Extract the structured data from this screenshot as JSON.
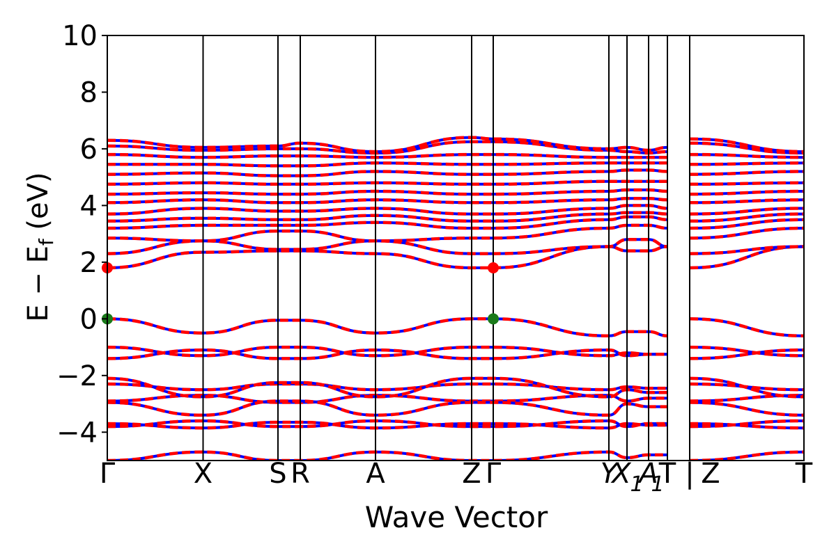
{
  "chart_data": {
    "type": "line",
    "title": "",
    "xlabel": "Wave Vector",
    "ylabel_main": "E − E",
    "ylabel_sub": "f",
    "ylabel_unit": " (eV)",
    "ylim": [
      -5,
      10
    ],
    "yticks": [
      {
        "value": 10,
        "label": "10"
      },
      {
        "value": 8,
        "label": "8"
      },
      {
        "value": 6,
        "label": "6"
      },
      {
        "value": 4,
        "label": "4"
      },
      {
        "value": 2,
        "label": "2"
      },
      {
        "value": 0,
        "label": "0"
      },
      {
        "value": -2,
        "label": "−2"
      },
      {
        "value": -4,
        "label": "−4"
      }
    ],
    "kpath_labels": [
      "Γ",
      "X",
      "S",
      "R",
      "A",
      "Z",
      "Γ",
      "Y",
      "X",
      "1",
      "A",
      "1",
      "T",
      "|",
      "Z",
      "T"
    ],
    "kpoints": [
      {
        "x": 0.0,
        "label": "Γ"
      },
      {
        "x": 0.1375,
        "label": "X"
      },
      {
        "x": 0.245,
        "label": "S"
      },
      {
        "x": 0.277,
        "label": "R"
      },
      {
        "x": 0.385,
        "label": "A"
      },
      {
        "x": 0.523,
        "label": "Z"
      },
      {
        "x": 0.554,
        "label": "Γ"
      },
      {
        "x": 0.72,
        "label": "Y"
      },
      {
        "x": 0.746,
        "label": "X"
      },
      {
        "x": 0.777,
        "label": "A"
      },
      {
        "x": 0.804,
        "label": "T"
      },
      {
        "x": 0.836,
        "label": "Z"
      },
      {
        "x": 1.0,
        "label": "T"
      }
    ],
    "special_points": [
      {
        "x": 0.0,
        "y": 1.8,
        "color": "#ff0000"
      },
      {
        "x": 0.554,
        "y": 1.8,
        "color": "#ff0000"
      },
      {
        "x": 0.0,
        "y": 0.0,
        "color": "#1a7a1a"
      },
      {
        "x": 0.554,
        "y": 0.0,
        "color": "#1a7a1a"
      }
    ],
    "series": [
      {
        "style": "solid",
        "color": "#0000ff"
      },
      {
        "style": "dashed",
        "color": "#ff0000"
      }
    ],
    "bands": [
      [
        [
          0,
          -5.0
        ],
        [
          0.137,
          -4.7
        ],
        [
          0.245,
          -5.0
        ],
        [
          0.277,
          -5.0
        ],
        [
          0.385,
          -4.7
        ],
        [
          0.523,
          -5.0
        ],
        [
          0.554,
          -5.0
        ],
        [
          0.72,
          -4.7
        ],
        [
          0.746,
          -4.9
        ],
        [
          0.777,
          -4.8
        ],
        [
          0.804,
          -4.8
        ],
        [
          0.836,
          -5.0
        ],
        [
          1.0,
          -4.7
        ]
      ],
      [
        [
          0,
          -3.8
        ],
        [
          0.137,
          -3.6
        ],
        [
          0.245,
          -3.8
        ],
        [
          0.277,
          -3.8
        ],
        [
          0.385,
          -3.6
        ],
        [
          0.523,
          -3.8
        ],
        [
          0.554,
          -3.8
        ],
        [
          0.72,
          -3.6
        ],
        [
          0.746,
          -3.8
        ],
        [
          0.777,
          -3.7
        ],
        [
          0.804,
          -3.7
        ],
        [
          0.836,
          -3.8
        ],
        [
          1.0,
          -3.6
        ]
      ],
      [
        [
          0,
          -3.7
        ],
        [
          0.137,
          -3.85
        ],
        [
          0.245,
          -3.65
        ],
        [
          0.277,
          -3.65
        ],
        [
          0.385,
          -3.85
        ],
        [
          0.523,
          -3.7
        ],
        [
          0.554,
          -3.7
        ],
        [
          0.72,
          -3.85
        ],
        [
          0.746,
          -3.7
        ],
        [
          0.777,
          -3.75
        ],
        [
          0.804,
          -3.75
        ],
        [
          0.836,
          -3.7
        ],
        [
          1.0,
          -3.85
        ]
      ],
      [
        [
          0,
          -2.9
        ],
        [
          0.137,
          -2.7
        ],
        [
          0.245,
          -2.95
        ],
        [
          0.277,
          -2.95
        ],
        [
          0.385,
          -2.7
        ],
        [
          0.523,
          -2.9
        ],
        [
          0.554,
          -2.9
        ],
        [
          0.72,
          -2.7
        ],
        [
          0.746,
          -2.9
        ],
        [
          0.777,
          -2.8
        ],
        [
          0.804,
          -2.8
        ],
        [
          0.836,
          -2.9
        ],
        [
          1.0,
          -2.7
        ]
      ],
      [
        [
          0,
          -2.95
        ],
        [
          0.137,
          -3.4
        ],
        [
          0.245,
          -2.9
        ],
        [
          0.277,
          -2.9
        ],
        [
          0.385,
          -3.4
        ],
        [
          0.523,
          -2.95
        ],
        [
          0.554,
          -2.95
        ],
        [
          0.72,
          -3.4
        ],
        [
          0.746,
          -3.0
        ],
        [
          0.777,
          -3.1
        ],
        [
          0.804,
          -3.1
        ],
        [
          0.836,
          -2.95
        ],
        [
          1.0,
          -3.4
        ]
      ],
      [
        [
          0,
          -2.3
        ],
        [
          0.137,
          -2.5
        ],
        [
          0.245,
          -2.3
        ],
        [
          0.277,
          -2.3
        ],
        [
          0.385,
          -2.5
        ],
        [
          0.523,
          -2.3
        ],
        [
          0.554,
          -2.3
        ],
        [
          0.72,
          -2.5
        ],
        [
          0.746,
          -2.4
        ],
        [
          0.777,
          -2.45
        ],
        [
          0.804,
          -2.45
        ],
        [
          0.836,
          -2.3
        ],
        [
          1.0,
          -2.5
        ]
      ],
      [
        [
          0,
          -2.1
        ],
        [
          0.137,
          -2.75
        ],
        [
          0.245,
          -2.25
        ],
        [
          0.277,
          -2.25
        ],
        [
          0.385,
          -2.75
        ],
        [
          0.523,
          -2.1
        ],
        [
          0.554,
          -2.1
        ],
        [
          0.72,
          -2.75
        ],
        [
          0.746,
          -2.5
        ],
        [
          0.777,
          -2.6
        ],
        [
          0.804,
          -2.6
        ],
        [
          0.836,
          -2.1
        ],
        [
          1.0,
          -2.75
        ]
      ],
      [
        [
          0,
          -1.4
        ],
        [
          0.137,
          -1.1
        ],
        [
          0.245,
          -1.4
        ],
        [
          0.277,
          -1.4
        ],
        [
          0.385,
          -1.1
        ],
        [
          0.523,
          -1.4
        ],
        [
          0.554,
          -1.4
        ],
        [
          0.72,
          -1.1
        ],
        [
          0.746,
          -1.3
        ],
        [
          0.777,
          -1.25
        ],
        [
          0.804,
          -1.25
        ],
        [
          0.836,
          -1.4
        ],
        [
          1.0,
          -1.1
        ]
      ],
      [
        [
          0,
          -1.0
        ],
        [
          0.137,
          -1.3
        ],
        [
          0.245,
          -1.0
        ],
        [
          0.277,
          -1.0
        ],
        [
          0.385,
          -1.3
        ],
        [
          0.523,
          -1.0
        ],
        [
          0.554,
          -1.0
        ],
        [
          0.72,
          -1.3
        ],
        [
          0.746,
          -1.2
        ],
        [
          0.777,
          -1.25
        ],
        [
          0.804,
          -1.25
        ],
        [
          0.836,
          -1.0
        ],
        [
          1.0,
          -1.3
        ]
      ],
      [
        [
          0,
          0.0
        ],
        [
          0.137,
          -0.5
        ],
        [
          0.245,
          -0.05
        ],
        [
          0.277,
          -0.05
        ],
        [
          0.385,
          -0.5
        ],
        [
          0.523,
          0.0
        ],
        [
          0.554,
          0.0
        ],
        [
          0.72,
          -0.6
        ],
        [
          0.746,
          -0.45
        ],
        [
          0.777,
          -0.45
        ],
        [
          0.804,
          -0.6
        ],
        [
          0.836,
          0.0
        ],
        [
          1.0,
          -0.6
        ]
      ],
      [
        [
          0,
          1.8
        ],
        [
          0.137,
          2.35
        ],
        [
          0.245,
          2.4
        ],
        [
          0.277,
          2.4
        ],
        [
          0.385,
          2.3
        ],
        [
          0.523,
          1.8
        ],
        [
          0.554,
          1.8
        ],
        [
          0.72,
          2.55
        ],
        [
          0.746,
          2.4
        ],
        [
          0.777,
          2.4
        ],
        [
          0.804,
          2.55
        ],
        [
          0.836,
          1.8
        ],
        [
          1.0,
          2.55
        ]
      ],
      [
        [
          0,
          2.3
        ],
        [
          0.137,
          2.75
        ],
        [
          0.245,
          2.45
        ],
        [
          0.277,
          2.45
        ],
        [
          0.385,
          2.75
        ],
        [
          0.523,
          2.3
        ],
        [
          0.554,
          2.3
        ],
        [
          0.72,
          2.55
        ],
        [
          0.746,
          2.8
        ],
        [
          0.777,
          2.8
        ],
        [
          0.804,
          2.55
        ],
        [
          0.836,
          2.3
        ],
        [
          1.0,
          2.55
        ]
      ],
      [
        [
          0,
          2.85
        ],
        [
          0.137,
          2.75
        ],
        [
          0.245,
          3.1
        ],
        [
          0.277,
          3.1
        ],
        [
          0.385,
          2.75
        ],
        [
          0.523,
          2.85
        ],
        [
          0.554,
          2.85
        ],
        [
          0.72,
          3.2
        ],
        [
          0.746,
          3.3
        ],
        [
          0.777,
          3.3
        ],
        [
          0.804,
          3.2
        ],
        [
          0.836,
          2.85
        ],
        [
          1.0,
          3.2
        ]
      ],
      [
        [
          0,
          3.2
        ],
        [
          0.137,
          3.3
        ],
        [
          0.245,
          3.3
        ],
        [
          0.277,
          3.3
        ],
        [
          0.385,
          3.4
        ],
        [
          0.523,
          3.2
        ],
        [
          0.554,
          3.2
        ],
        [
          0.72,
          3.5
        ],
        [
          0.746,
          3.6
        ],
        [
          0.777,
          3.6
        ],
        [
          0.804,
          3.5
        ],
        [
          0.836,
          3.2
        ],
        [
          1.0,
          3.5
        ]
      ],
      [
        [
          0,
          3.45
        ],
        [
          0.137,
          3.55
        ],
        [
          0.245,
          3.5
        ],
        [
          0.277,
          3.5
        ],
        [
          0.385,
          3.65
        ],
        [
          0.523,
          3.45
        ],
        [
          0.554,
          3.45
        ],
        [
          0.72,
          3.7
        ],
        [
          0.746,
          3.75
        ],
        [
          0.777,
          3.75
        ],
        [
          0.804,
          3.7
        ],
        [
          0.836,
          3.45
        ],
        [
          1.0,
          3.7
        ]
      ],
      [
        [
          0,
          3.7
        ],
        [
          0.137,
          3.9
        ],
        [
          0.245,
          3.8
        ],
        [
          0.277,
          3.8
        ],
        [
          0.385,
          3.9
        ],
        [
          0.523,
          3.7
        ],
        [
          0.554,
          3.7
        ],
        [
          0.72,
          3.9
        ],
        [
          0.746,
          4.0
        ],
        [
          0.777,
          4.0
        ],
        [
          0.804,
          3.9
        ],
        [
          0.836,
          3.7
        ],
        [
          1.0,
          3.9
        ]
      ],
      [
        [
          0,
          4.1
        ],
        [
          0.137,
          4.2
        ],
        [
          0.245,
          4.1
        ],
        [
          0.277,
          4.1
        ],
        [
          0.385,
          4.2
        ],
        [
          0.523,
          4.1
        ],
        [
          0.554,
          4.1
        ],
        [
          0.72,
          4.2
        ],
        [
          0.746,
          4.25
        ],
        [
          0.777,
          4.25
        ],
        [
          0.804,
          4.2
        ],
        [
          0.836,
          4.1
        ],
        [
          1.0,
          4.2
        ]
      ],
      [
        [
          0,
          4.4
        ],
        [
          0.137,
          4.45
        ],
        [
          0.245,
          4.4
        ],
        [
          0.277,
          4.4
        ],
        [
          0.385,
          4.5
        ],
        [
          0.523,
          4.4
        ],
        [
          0.554,
          4.4
        ],
        [
          0.72,
          4.5
        ],
        [
          0.746,
          4.55
        ],
        [
          0.777,
          4.55
        ],
        [
          0.804,
          4.5
        ],
        [
          0.836,
          4.4
        ],
        [
          1.0,
          4.5
        ]
      ],
      [
        [
          0,
          4.75
        ],
        [
          0.137,
          4.8
        ],
        [
          0.245,
          4.75
        ],
        [
          0.277,
          4.75
        ],
        [
          0.385,
          4.8
        ],
        [
          0.523,
          4.75
        ],
        [
          0.554,
          4.75
        ],
        [
          0.72,
          4.85
        ],
        [
          0.746,
          4.85
        ],
        [
          0.777,
          4.85
        ],
        [
          0.804,
          4.85
        ],
        [
          0.836,
          4.75
        ],
        [
          1.0,
          4.8
        ]
      ],
      [
        [
          0,
          5.1
        ],
        [
          0.137,
          5.15
        ],
        [
          0.245,
          5.05
        ],
        [
          0.277,
          5.05
        ],
        [
          0.385,
          5.2
        ],
        [
          0.523,
          5.1
        ],
        [
          0.554,
          5.1
        ],
        [
          0.72,
          5.2
        ],
        [
          0.746,
          5.25
        ],
        [
          0.777,
          5.25
        ],
        [
          0.804,
          5.2
        ],
        [
          0.836,
          5.1
        ],
        [
          1.0,
          5.2
        ]
      ],
      [
        [
          0,
          5.45
        ],
        [
          0.137,
          5.45
        ],
        [
          0.245,
          5.4
        ],
        [
          0.277,
          5.4
        ],
        [
          0.385,
          5.5
        ],
        [
          0.523,
          5.45
        ],
        [
          0.554,
          5.45
        ],
        [
          0.72,
          5.5
        ],
        [
          0.746,
          5.5
        ],
        [
          0.777,
          5.5
        ],
        [
          0.804,
          5.5
        ],
        [
          0.836,
          5.45
        ],
        [
          1.0,
          5.5
        ]
      ],
      [
        [
          0,
          5.8
        ],
        [
          0.137,
          5.7
        ],
        [
          0.245,
          5.75
        ],
        [
          0.277,
          5.75
        ],
        [
          0.385,
          5.7
        ],
        [
          0.523,
          5.8
        ],
        [
          0.554,
          5.8
        ],
        [
          0.72,
          5.7
        ],
        [
          0.746,
          5.7
        ],
        [
          0.777,
          5.7
        ],
        [
          0.804,
          5.7
        ],
        [
          0.836,
          5.8
        ],
        [
          1.0,
          5.7
        ]
      ],
      [
        [
          0,
          6.1
        ],
        [
          0.137,
          5.95
        ],
        [
          0.245,
          6.0
        ],
        [
          0.277,
          6.0
        ],
        [
          0.385,
          5.85
        ],
        [
          0.523,
          6.25
        ],
        [
          0.554,
          6.25
        ],
        [
          0.72,
          5.95
        ],
        [
          0.746,
          5.9
        ],
        [
          0.777,
          5.85
        ],
        [
          0.804,
          5.9
        ],
        [
          0.836,
          6.2
        ],
        [
          1.0,
          5.85
        ]
      ],
      [
        [
          0,
          6.3
        ],
        [
          0.137,
          6.05
        ],
        [
          0.245,
          6.1
        ],
        [
          0.277,
          6.2
        ],
        [
          0.385,
          5.9
        ],
        [
          0.523,
          6.4
        ],
        [
          0.554,
          6.35
        ],
        [
          0.72,
          6.0
        ],
        [
          0.746,
          6.05
        ],
        [
          0.777,
          5.95
        ],
        [
          0.804,
          6.05
        ],
        [
          0.836,
          6.35
        ],
        [
          1.0,
          5.9
        ]
      ]
    ]
  }
}
